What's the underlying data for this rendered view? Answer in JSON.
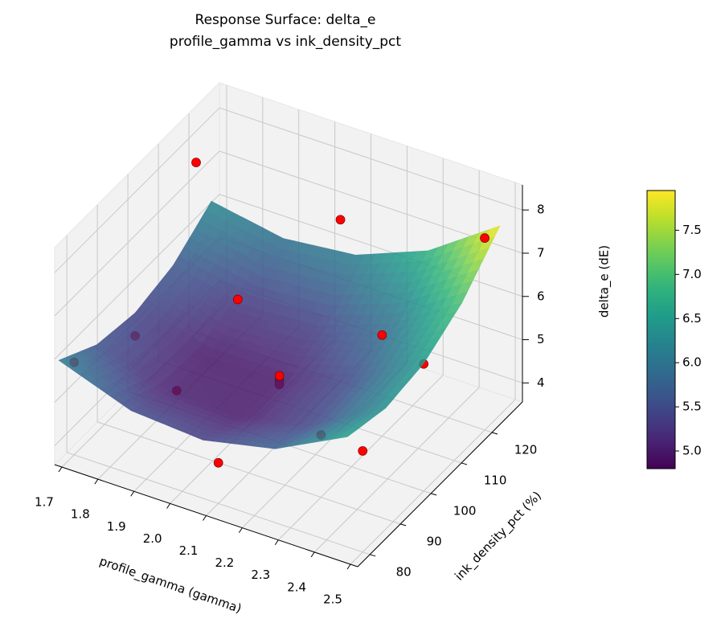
{
  "chart_data": {
    "type": "surface3d",
    "title": "Response Surface: delta_e",
    "subtitle": "profile_gamma vs ink_density_pct",
    "x_label": "profile_gamma (gamma)",
    "y_label": "ink_density_pct (%)",
    "z_label": "delta_e (dE)",
    "xlim": [
      1.68,
      2.52
    ],
    "ylim": [
      76,
      130
    ],
    "zlim": [
      3.56,
      8.58
    ],
    "xticks": [
      1.7,
      1.8,
      1.9,
      {
        "value": 2.0,
        "label": "2.0"
      },
      2.1,
      2.2,
      2.3,
      2.4,
      2.5
    ],
    "yticks": [
      80,
      90,
      100,
      110,
      120
    ],
    "zticks": [
      4,
      5,
      6,
      7,
      8
    ],
    "grid": true,
    "colormap": "viridis",
    "surface": {
      "x": [
        1.7,
        1.9,
        2.1,
        2.3,
        2.5
      ],
      "y": [
        75,
        87.5,
        100,
        112.5,
        125
      ],
      "z": [
        [
          6.1,
          5.5,
          5.38,
          5.74,
          6.58
        ],
        [
          5.58,
          5.05,
          5.0,
          5.44,
          6.36
        ],
        [
          5.43,
          4.98,
          5.01,
          5.52,
          6.51
        ],
        [
          5.65,
          5.28,
          5.38,
          5.97,
          7.03
        ],
        [
          6.25,
          5.95,
          6.13,
          6.79,
          7.93
        ]
      ]
    },
    "points": {
      "color": "#ff0000",
      "x": [
        1.7,
        1.7,
        1.7,
        2.1,
        2.1,
        2.1,
        2.1,
        2.1,
        2.5,
        2.5,
        2.5,
        1.9,
        2.3,
        1.9,
        2.3
      ],
      "y": [
        80,
        100,
        120,
        80,
        100,
        100,
        100,
        120,
        80,
        100,
        120,
        90,
        90,
        110,
        110
      ],
      "z": [
        5.7,
        4.9,
        7.5,
        4.5,
        5.0,
        4.9,
        5.1,
        7.3,
        5.9,
        6.5,
        8.0,
        4.9,
        5.0,
        5.6,
        5.9
      ]
    },
    "colorbar": {
      "lim": [
        4.8,
        7.95
      ],
      "ticks": [
        {
          "value": 5.0,
          "label": "5.0"
        },
        5.5,
        {
          "value": 6.0,
          "label": "6.0"
        },
        6.5,
        {
          "value": 7.0,
          "label": "7.0"
        },
        7.5
      ]
    }
  }
}
